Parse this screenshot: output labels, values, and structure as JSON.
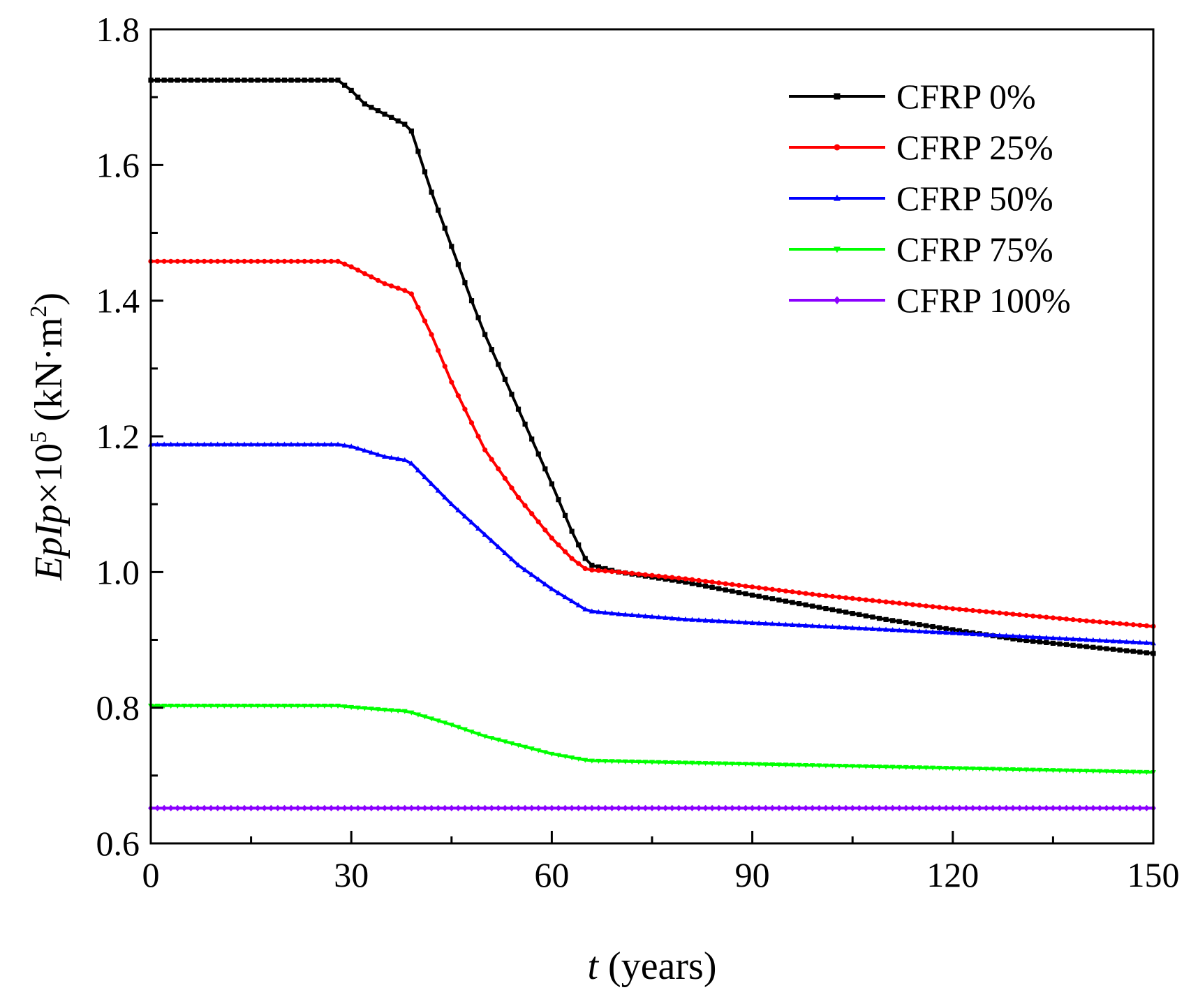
{
  "chart_data": {
    "type": "line",
    "title": "",
    "xlabel": {
      "var": "t",
      "rest": " (years)"
    },
    "ylabel": {
      "var": "EpIp",
      "mult": "×10",
      "exp": "5",
      "unit_pre": " (kN·m",
      "unit_exp": "2",
      "unit_post": ")"
    },
    "xlim": [
      0,
      150
    ],
    "ylim": [
      0.6,
      1.8
    ],
    "x_major_ticks": [
      0,
      30,
      60,
      90,
      120,
      150
    ],
    "x_tick_labels": [
      "0",
      "30",
      "60",
      "90",
      "120",
      "150"
    ],
    "x_minor_ticks": [
      15,
      45,
      75,
      105,
      135
    ],
    "y_major_ticks": [
      0.6,
      0.8,
      1.0,
      1.2,
      1.4,
      1.6,
      1.8
    ],
    "y_tick_labels": [
      "0.6",
      "0.8",
      "1.0",
      "1.2",
      "1.4",
      "1.6",
      "1.8"
    ],
    "y_minor_ticks": [
      0.7,
      0.9,
      1.1,
      1.3,
      1.5,
      1.7
    ],
    "grid": false,
    "legend_position": "top-right",
    "series": [
      {
        "name": "CFRP 0%",
        "color": "#000000",
        "marker": "square",
        "x": [
          0,
          28,
          30,
          32,
          35,
          38,
          39,
          40,
          41,
          42,
          45,
          48,
          50,
          55,
          60,
          63,
          65,
          66,
          70,
          80,
          90,
          100,
          110,
          120,
          130,
          140,
          150
        ],
        "values": [
          1.725,
          1.725,
          1.71,
          1.69,
          1.675,
          1.66,
          1.65,
          1.62,
          1.59,
          1.56,
          1.48,
          1.4,
          1.35,
          1.24,
          1.13,
          1.06,
          1.02,
          1.01,
          1.0,
          0.985,
          0.966,
          0.948,
          0.93,
          0.915,
          0.9,
          0.89,
          0.88
        ]
      },
      {
        "name": "CFRP 25%",
        "color": "#ff0000",
        "marker": "circle",
        "x": [
          0,
          28,
          30,
          35,
          38,
          39,
          40,
          42,
          45,
          48,
          50,
          55,
          60,
          63,
          65,
          66,
          70,
          80,
          90,
          100,
          110,
          120,
          130,
          140,
          150
        ],
        "values": [
          1.458,
          1.458,
          1.45,
          1.425,
          1.415,
          1.41,
          1.39,
          1.35,
          1.28,
          1.22,
          1.18,
          1.11,
          1.05,
          1.02,
          1.005,
          1.003,
          1.0,
          0.99,
          0.978,
          0.966,
          0.956,
          0.946,
          0.937,
          0.928,
          0.92
        ]
      },
      {
        "name": "CFRP 50%",
        "color": "#0000ff",
        "marker": "triangle",
        "x": [
          0,
          28,
          30,
          35,
          38,
          39,
          40,
          42,
          45,
          50,
          55,
          60,
          65,
          66,
          70,
          80,
          90,
          100,
          110,
          120,
          130,
          140,
          150
        ],
        "values": [
          1.188,
          1.188,
          1.185,
          1.17,
          1.165,
          1.16,
          1.15,
          1.13,
          1.1,
          1.055,
          1.01,
          0.975,
          0.945,
          0.942,
          0.938,
          0.93,
          0.925,
          0.92,
          0.915,
          0.91,
          0.905,
          0.9,
          0.895
        ]
      },
      {
        "name": "CFRP 75%",
        "color": "#00ff00",
        "marker": "triangle-down",
        "x": [
          0,
          28,
          30,
          35,
          38,
          39,
          40,
          45,
          50,
          55,
          60,
          65,
          66,
          70,
          80,
          90,
          100,
          110,
          120,
          130,
          140,
          150
        ],
        "values": [
          0.803,
          0.803,
          0.801,
          0.797,
          0.795,
          0.793,
          0.79,
          0.775,
          0.758,
          0.745,
          0.732,
          0.723,
          0.722,
          0.721,
          0.719,
          0.717,
          0.715,
          0.713,
          0.711,
          0.709,
          0.707,
          0.705
        ]
      },
      {
        "name": "CFRP 100%",
        "color": "#8b00ff",
        "marker": "diamond",
        "x": [
          0,
          150
        ],
        "values": [
          0.652,
          0.652
        ]
      }
    ]
  }
}
